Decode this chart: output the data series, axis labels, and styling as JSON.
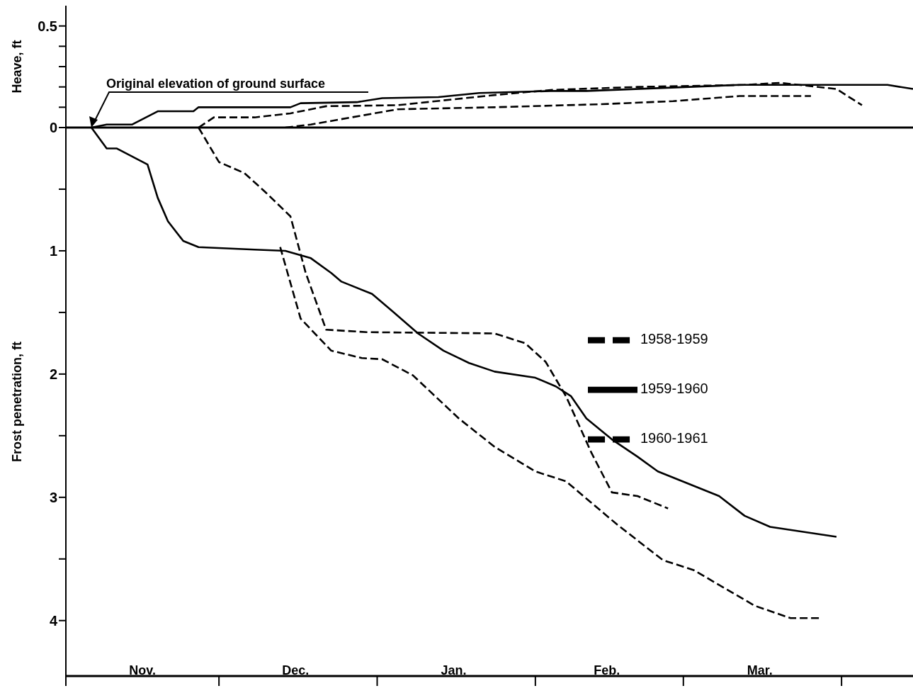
{
  "chart_data": [
    {
      "type": "line",
      "ylabel": "Heave, ft",
      "xlim": [
        "1959-11-01",
        "1960-04-15"
      ],
      "ylim": [
        0,
        0.6
      ],
      "yticks": [
        {
          "value": 0,
          "label": "0"
        },
        {
          "value": 0.1,
          "label": null
        },
        {
          "value": 0.2,
          "label": null
        },
        {
          "value": 0.3,
          "label": null
        },
        {
          "value": 0.4,
          "label": null
        },
        {
          "value": 0.5,
          "label": "0.5"
        }
      ],
      "tick_labels": "y",
      "grid": false,
      "legend": false,
      "annotations": [
        "Original elevation of ground surface"
      ],
      "series": [
        {
          "color": "#000000",
          "line_style": "dashed",
          "x": [
            "1959-12-14",
            "1959-12-19",
            "1960-01-05",
            "1960-01-24",
            "1960-02-14",
            "1960-02-28",
            "1960-03-12",
            "1960-03-26"
          ],
          "values": [
            0,
            0.015,
            0.09,
            0.1,
            0.115,
            0.13,
            0.155,
            0.155
          ]
        },
        {
          "color": "#000000",
          "line_style": "solid",
          "x": [
            "1959-11-06",
            "1959-11-09",
            "1959-11-14",
            "1959-11-19",
            "1959-11-26",
            "1959-11-27",
            "1959-12-15",
            "1959-12-17",
            "1959-12-28",
            "1960-01-02",
            "1960-01-13",
            "1960-01-21",
            "1960-02-04",
            "1960-02-11",
            "1960-03-12",
            "1960-04-10",
            "1960-04-15"
          ],
          "values": [
            0,
            0.015,
            0.015,
            0.08,
            0.08,
            0.1,
            0.1,
            0.12,
            0.125,
            0.145,
            0.15,
            0.17,
            0.18,
            0.18,
            0.21,
            0.21,
            0.19
          ]
        },
        {
          "color": "#000000",
          "line_style": "dashed",
          "x": [
            "1959-11-27",
            "1959-11-30",
            "1959-12-08",
            "1959-12-15",
            "1959-12-22",
            "1960-01-05",
            "1960-01-24",
            "1960-02-04",
            "1960-02-21",
            "1960-03-13",
            "1960-03-20",
            "1960-03-31",
            "1960-04-05"
          ],
          "values": [
            0,
            0.05,
            0.05,
            0.07,
            0.105,
            0.11,
            0.16,
            0.185,
            0.2,
            0.21,
            0.22,
            0.19,
            0.11
          ]
        }
      ]
    },
    {
      "type": "line",
      "ylabel": "Frost penetration, ft",
      "xlim": [
        "1959-11-01",
        "1960-04-15"
      ],
      "ylim": [
        4.45,
        0
      ],
      "yticks": [
        {
          "value": 0,
          "label": null
        },
        {
          "value": 0.5,
          "label": null
        },
        1,
        {
          "value": 1.5,
          "label": null
        },
        2,
        {
          "value": 2.5,
          "label": null
        },
        3,
        {
          "value": 3.5,
          "label": null
        },
        4
      ],
      "xticks": [
        {
          "value": "1959-11-01",
          "label": null
        },
        {
          "value": "1959-11-16",
          "label": "Nov."
        },
        {
          "value": "1959-12-01",
          "label": null
        },
        {
          "value": "1959-12-16",
          "label": "Dec."
        },
        {
          "value": "1960-01-01",
          "label": null
        },
        {
          "value": "1960-01-16",
          "label": "Jan."
        },
        {
          "value": "1960-02-01",
          "label": null
        },
        {
          "value": "1960-02-15",
          "label": "Feb."
        },
        {
          "value": "1960-03-01",
          "label": null
        },
        {
          "value": "1960-03-16",
          "label": "Mar."
        },
        {
          "value": "1960-04-01",
          "label": null
        }
      ],
      "grid": false,
      "legend": "right",
      "series": [
        {
          "name": "1958-1959",
          "color": "#000000",
          "line_style": "dashed",
          "x": [
            "1959-12-13",
            "1959-12-17",
            "1959-12-23",
            "1959-12-29",
            "1960-01-02",
            "1960-01-08",
            "1960-01-17",
            "1960-01-24",
            "1960-02-01",
            "1960-02-07",
            "1960-02-17",
            "1960-02-26",
            "1960-03-03",
            "1960-03-15",
            "1960-03-22",
            "1960-03-28"
          ],
          "values": [
            0.97,
            1.55,
            1.81,
            1.87,
            1.88,
            2.01,
            2.36,
            2.59,
            2.79,
            2.87,
            3.22,
            3.51,
            3.59,
            3.88,
            3.98,
            3.98
          ]
        },
        {
          "name": "1959-1960",
          "color": "#000000",
          "line_style": "solid",
          "x": [
            "1959-11-06",
            "1959-11-09",
            "1959-11-11",
            "1959-11-17",
            "1959-11-19",
            "1959-11-21",
            "1959-11-24",
            "1959-11-27",
            "1959-12-08",
            "1959-12-14",
            "1959-12-19",
            "1959-12-23",
            "1959-12-25",
            "1959-12-31",
            "1960-01-04",
            "1960-01-09",
            "1960-01-14",
            "1960-01-19",
            "1960-01-24",
            "1960-02-01",
            "1960-02-05",
            "1960-02-08",
            "1960-02-11",
            "1960-02-16",
            "1960-02-21",
            "1960-02-25",
            "1960-03-08",
            "1960-03-13",
            "1960-03-18",
            "1960-03-31"
          ],
          "values": [
            0,
            0.17,
            0.17,
            0.3,
            0.57,
            0.76,
            0.92,
            0.97,
            0.99,
            1.0,
            1.06,
            1.18,
            1.25,
            1.35,
            1.49,
            1.67,
            1.81,
            1.91,
            1.98,
            2.03,
            2.1,
            2.18,
            2.36,
            2.53,
            2.67,
            2.79,
            2.99,
            3.15,
            3.24,
            3.32
          ]
        },
        {
          "name": "1960-1961",
          "color": "#000000",
          "line_style": "dashed",
          "x": [
            "1959-11-27",
            "1959-12-01",
            "1959-12-06",
            "1959-12-10",
            "1959-12-15",
            "1959-12-18",
            "1959-12-22",
            "1959-12-30",
            "1960-01-24",
            "1960-01-30",
            "1960-02-03",
            "1960-02-07",
            "1960-02-12",
            "1960-02-16",
            "1960-02-21",
            "1960-02-27"
          ],
          "values": [
            0,
            0.28,
            0.37,
            0.52,
            0.72,
            1.18,
            1.64,
            1.66,
            1.67,
            1.75,
            1.9,
            2.18,
            2.64,
            2.96,
            2.99,
            3.09
          ]
        }
      ]
    }
  ]
}
